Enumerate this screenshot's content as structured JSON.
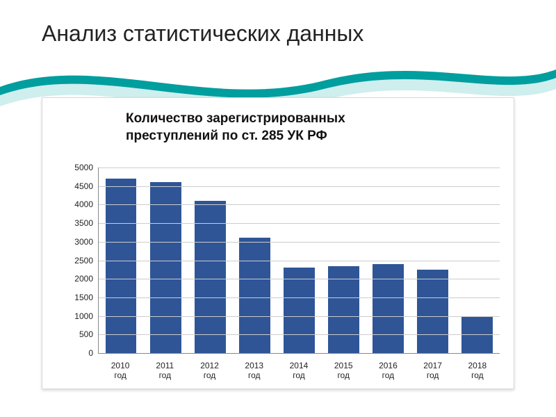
{
  "slide_title": "Анализ статистических данных",
  "wave": {
    "primary_color": "#009e9e",
    "secondary_color": "#cfeeee"
  },
  "chart": {
    "type": "bar",
    "subtitle_line1": "Количество  зарегистрированных",
    "subtitle_line2": "преступлений по ст. 285 УК РФ",
    "subtitle_fontsize": 19,
    "categories": [
      "2010 год",
      "2011 год",
      "2012 год",
      "2013 год",
      "2014 год",
      "2015 год",
      "2016 год",
      "2017 год",
      "2018 год"
    ],
    "values": [
      4700,
      4600,
      4100,
      3100,
      2300,
      2350,
      2400,
      2250,
      1000
    ],
    "bar_color": "#2f5597",
    "background_color": "#ffffff",
    "border_color": "#d9d9d9",
    "grid_color": "#cccccc",
    "axis_color": "#888888",
    "ylim": [
      0,
      5000
    ],
    "y_ticks": [
      0,
      500,
      1000,
      1500,
      2000,
      2500,
      3000,
      3500,
      4000,
      4500,
      5000
    ],
    "tick_fontsize": 12,
    "bar_width": 0.7
  }
}
